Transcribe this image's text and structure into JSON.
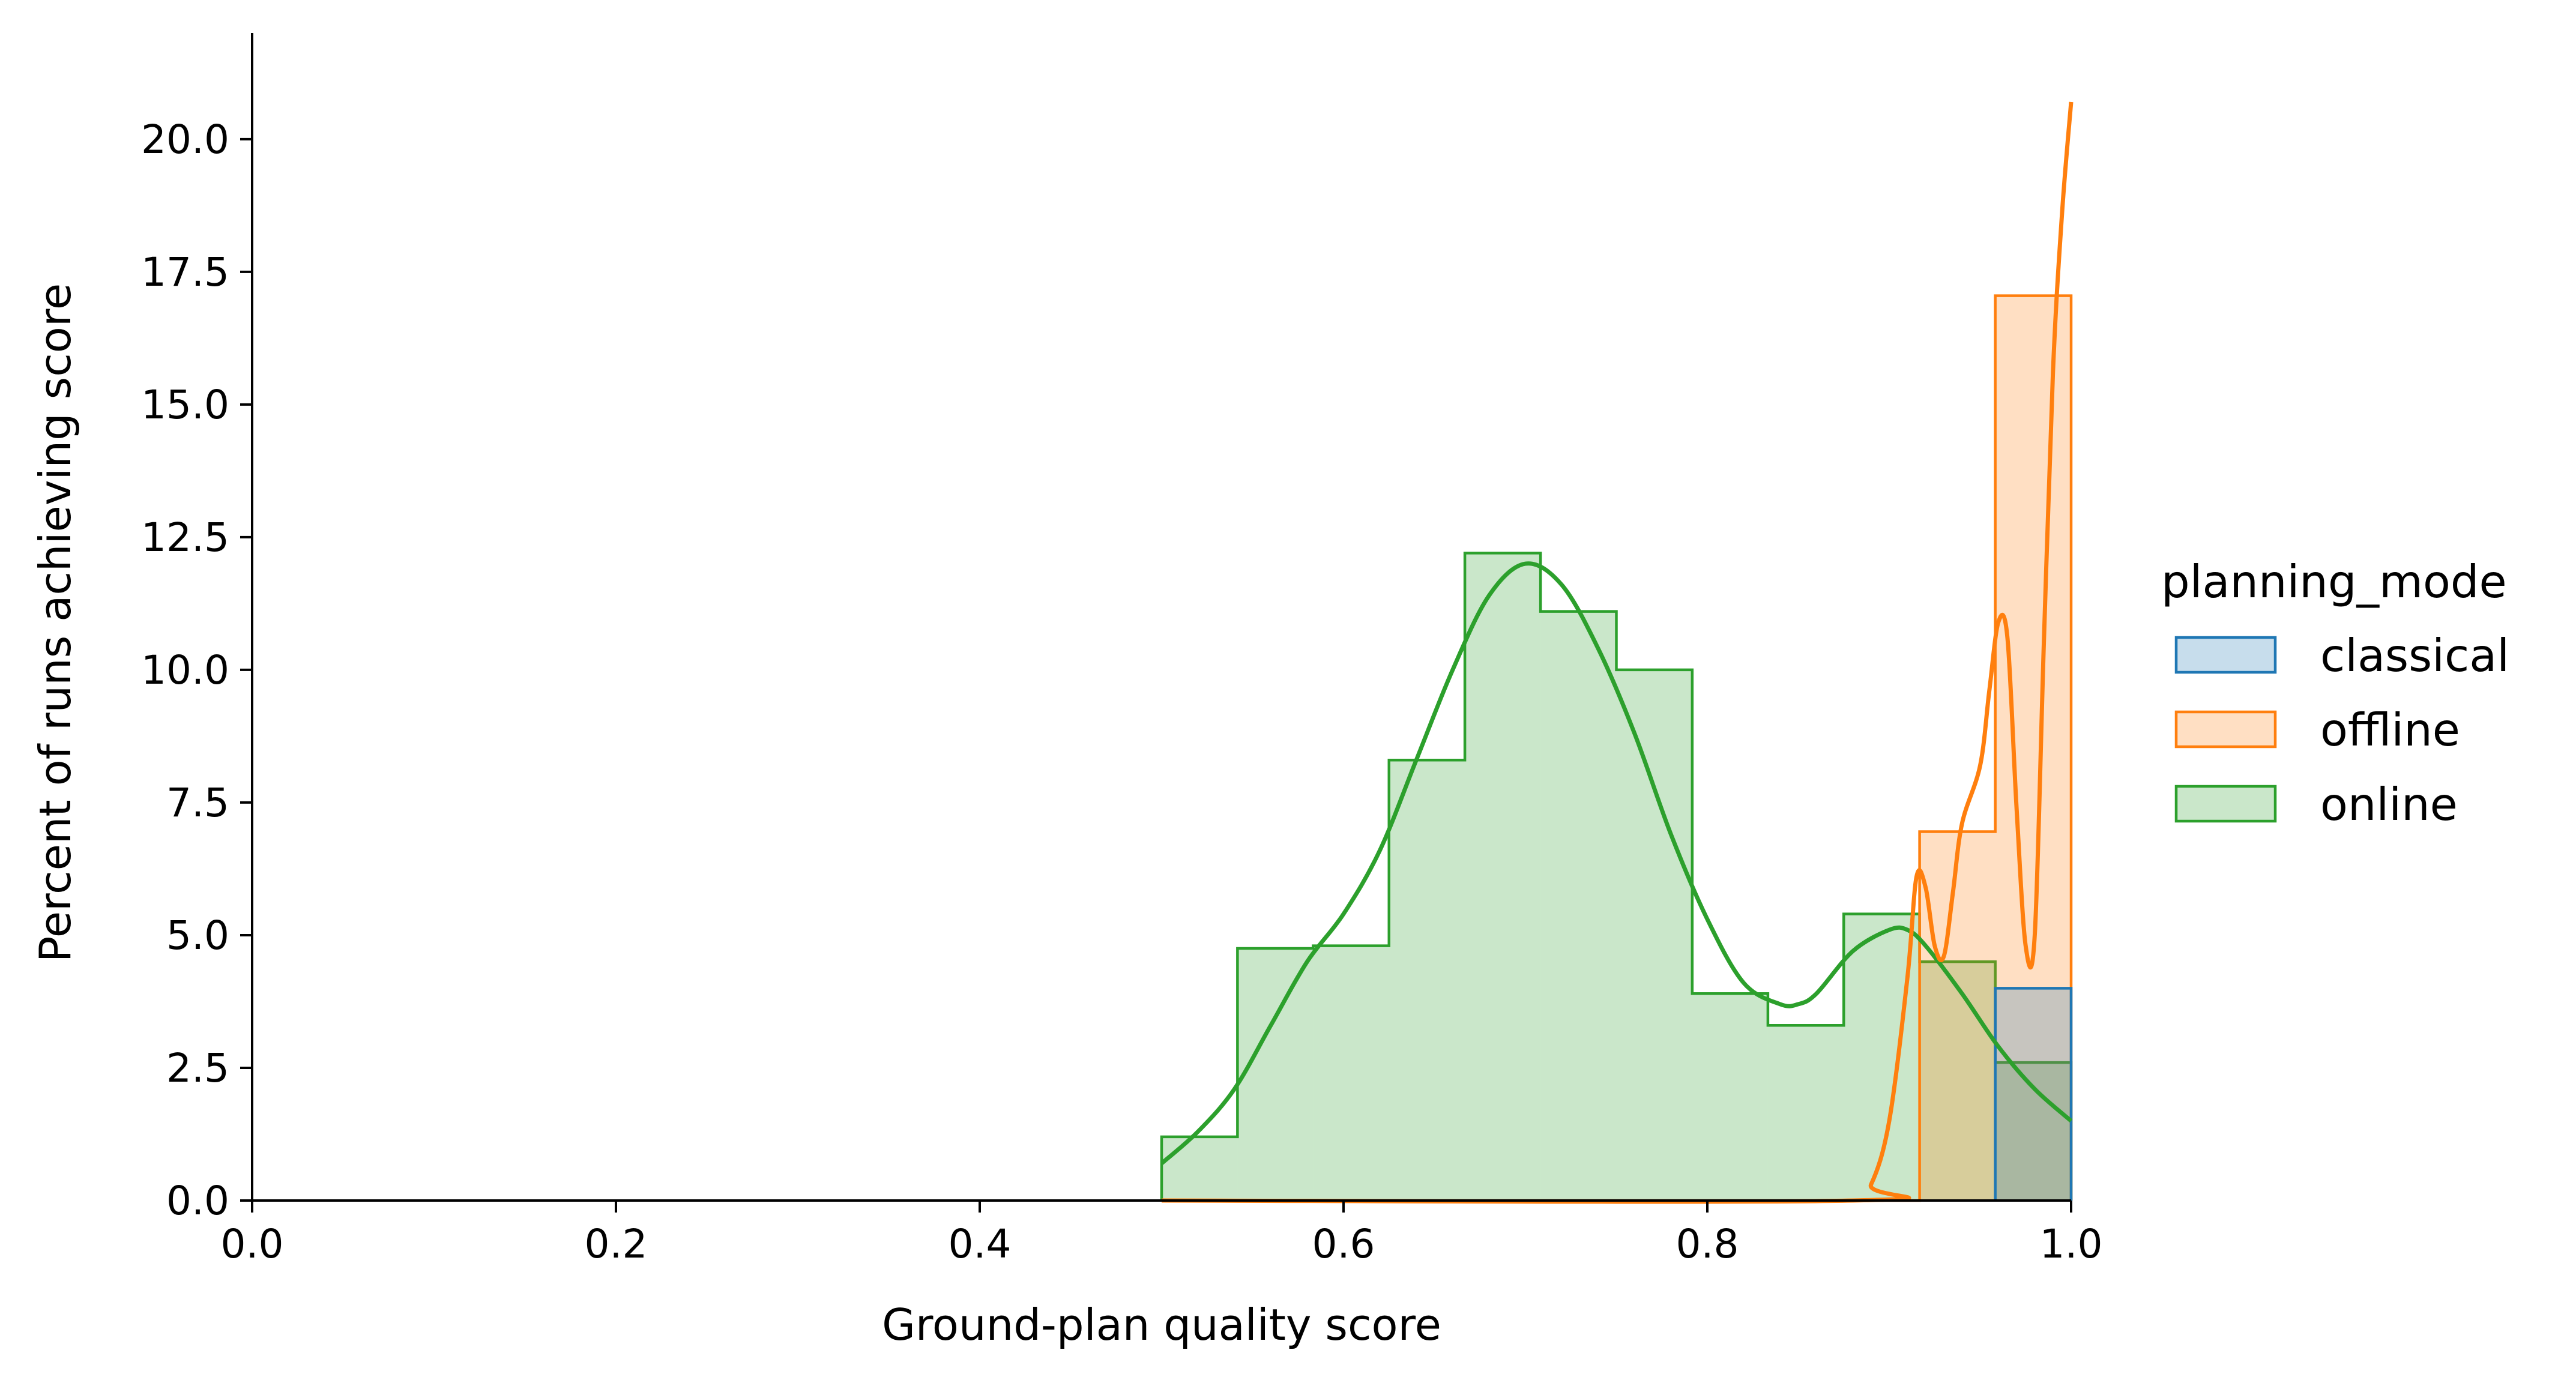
{
  "chart_data": {
    "type": "histogram",
    "xlabel": "Ground-plan quality score",
    "ylabel": "Percent of runs achieving score",
    "xlim": [
      0.0,
      1.0
    ],
    "ylim": [
      0.0,
      22.0
    ],
    "x_ticks": [
      "0.0",
      "0.2",
      "0.4",
      "0.6",
      "0.8",
      "1.0"
    ],
    "y_ticks": [
      "0.0",
      "2.5",
      "5.0",
      "7.5",
      "10.0",
      "12.5",
      "15.0",
      "17.5",
      "20.0"
    ],
    "legend": {
      "title": "planning_mode",
      "placement": "right",
      "items": [
        {
          "label": "classical",
          "color": "#1f77b4"
        },
        {
          "label": "offline",
          "color": "#ff7f0e"
        },
        {
          "label": "online",
          "color": "#2ca02c"
        }
      ]
    },
    "grid": false,
    "series": [
      {
        "name": "online",
        "color": "#2ca02c",
        "bin_edges": [
          0.5,
          0.5417,
          0.5833,
          0.625,
          0.6667,
          0.7083,
          0.75,
          0.7917,
          0.8333,
          0.875,
          0.9167,
          0.9583,
          1.0
        ],
        "values": [
          1.2,
          4.75,
          4.8,
          8.3,
          12.2,
          11.1,
          10.0,
          3.9,
          3.3,
          5.4,
          4.5,
          2.6
        ],
        "kde": {
          "x": [
            0.5,
            0.52,
            0.54,
            0.56,
            0.58,
            0.6,
            0.62,
            0.64,
            0.66,
            0.68,
            0.7,
            0.72,
            0.74,
            0.76,
            0.78,
            0.8,
            0.82,
            0.84,
            0.85,
            0.86,
            0.88,
            0.9,
            0.91,
            0.92,
            0.94,
            0.96,
            0.98,
            1.0
          ],
          "y": [
            0.7,
            1.3,
            2.1,
            3.3,
            4.5,
            5.4,
            6.6,
            8.3,
            10.0,
            11.4,
            12.0,
            11.6,
            10.4,
            8.8,
            6.9,
            5.3,
            4.1,
            3.7,
            3.7,
            3.9,
            4.7,
            5.1,
            5.1,
            4.8,
            3.9,
            2.9,
            2.1,
            1.5
          ]
        }
      },
      {
        "name": "offline",
        "color": "#ff7f0e",
        "bin_edges": [
          0.5,
          0.5417,
          0.5833,
          0.625,
          0.6667,
          0.7083,
          0.75,
          0.7917,
          0.8333,
          0.875,
          0.9167,
          0.9583,
          1.0
        ],
        "values": [
          0,
          0,
          0,
          0,
          0,
          0,
          0,
          0,
          0,
          0,
          6.95,
          17.05
        ],
        "kde": {
          "x": [
            0.5,
            0.88,
            0.89,
            0.9,
            0.91,
            0.915,
            0.92,
            0.925,
            0.93,
            0.935,
            0.94,
            0.95,
            0.955,
            0.96,
            0.965,
            0.97,
            0.975,
            0.98,
            0.985,
            0.99,
            0.995,
            1.0
          ],
          "y": [
            0.0,
            0.0,
            0.3,
            1.5,
            4.2,
            6.1,
            5.9,
            4.8,
            4.6,
            5.8,
            7.1,
            8.2,
            9.6,
            10.9,
            10.6,
            7.4,
            4.8,
            5.0,
            10.5,
            15.6,
            18.6,
            20.7
          ]
        }
      },
      {
        "name": "classical",
        "color": "#1f77b4",
        "bin_edges": [
          0.9583,
          1.0
        ],
        "values": [
          4.0
        ],
        "kde": null
      }
    ]
  }
}
